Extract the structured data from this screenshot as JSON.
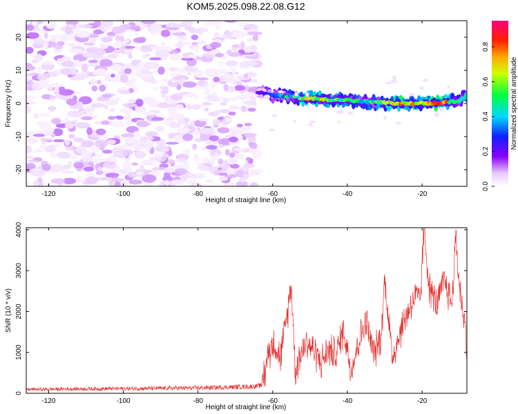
{
  "figure": {
    "title": "KOM5.2025.098.22.08.G12"
  },
  "colors": {
    "snr_line": "#e53030",
    "background": "#ffffff",
    "axis": "#000000"
  },
  "chart_data": [
    {
      "type": "heatmap",
      "name": "spectrogram",
      "xlabel": "Height of straight line (km)",
      "ylabel": "Frequency (Hz)",
      "xlim": [
        -126,
        -8
      ],
      "ylim": [
        -25,
        25
      ],
      "xticks": [
        -120,
        -100,
        -80,
        -60,
        -40,
        -20
      ],
      "xtick_labels": [
        "-120",
        "-100",
        "-80",
        "-60",
        "-40",
        "-20"
      ],
      "yticks": [
        -20,
        -10,
        0,
        10,
        20
      ],
      "ytick_labels": [
        "-20",
        "-10",
        "0",
        "10",
        "20"
      ],
      "colorbar": {
        "label": "Normalized spectral amplitude",
        "range": [
          0,
          0.95
        ],
        "ticks": [
          0.0,
          0.2,
          0.4,
          0.6,
          0.8
        ],
        "tick_labels": [
          "0.0",
          "0.2",
          "0.4",
          "0.6",
          "0.8"
        ],
        "colormap": "rainbow (white-violet-blue-cyan-green-yellow-red-magenta)"
      },
      "noise_region_x": [
        -126,
        -64
      ],
      "noise_amplitude_range": [
        0.02,
        0.12
      ],
      "signal_trace": {
        "x": [
          -64,
          -60,
          -55,
          -50,
          -45,
          -40,
          -35,
          -30,
          -25,
          -20,
          -15,
          -10,
          -8
        ],
        "freq_hz": [
          3.5,
          2.5,
          2.0,
          1.5,
          1.2,
          1.0,
          0.5,
          0.2,
          0.0,
          0.0,
          0.2,
          0.8,
          2.5
        ],
        "peak_amplitude": [
          0.15,
          0.3,
          0.45,
          0.65,
          0.55,
          0.5,
          0.45,
          0.55,
          0.75,
          0.6,
          0.85,
          0.4,
          0.5
        ]
      }
    },
    {
      "type": "line",
      "name": "snr",
      "xlabel": "Height of straight line (km)",
      "ylabel": "SNR (10 * v/v)",
      "xlim": [
        -126,
        -8
      ],
      "ylim": [
        0,
        4050
      ],
      "xticks": [
        -120,
        -100,
        -80,
        -60,
        -40,
        -20
      ],
      "xtick_labels": [
        "-120",
        "-100",
        "-80",
        "-60",
        "-40",
        "-20"
      ],
      "yticks": [
        0,
        1000,
        2000,
        3000,
        4000
      ],
      "ytick_labels": [
        "0",
        "1000",
        "2000",
        "3000",
        "4000"
      ],
      "series": [
        {
          "x": [
            -126,
            -110,
            -95,
            -80,
            -72,
            -66,
            -63,
            -62,
            -61,
            -59.5,
            -58,
            -56.5,
            -55,
            -54,
            -53,
            -51,
            -49,
            -47,
            -45,
            -43,
            -41,
            -39,
            -37,
            -35,
            -33,
            -31,
            -30,
            -28,
            -26,
            -24,
            -22,
            -20.5,
            -19.5,
            -18,
            -16,
            -14,
            -13,
            -12,
            -11,
            -10,
            -9,
            -8
          ],
          "y": [
            120,
            140,
            150,
            170,
            200,
            230,
            280,
            600,
            1100,
            1300,
            900,
            1700,
            2750,
            600,
            900,
            1300,
            1100,
            800,
            1100,
            1000,
            1600,
            600,
            1300,
            1800,
            1000,
            1400,
            2850,
            900,
            1500,
            2000,
            2400,
            2300,
            4050,
            2600,
            2200,
            2800,
            2500,
            2200,
            3850,
            2700,
            2000,
            1300
          ],
          "noise": {
            "pre_onset_amplitude": 80,
            "post_onset_amplitude": 600
          }
        }
      ]
    }
  ]
}
